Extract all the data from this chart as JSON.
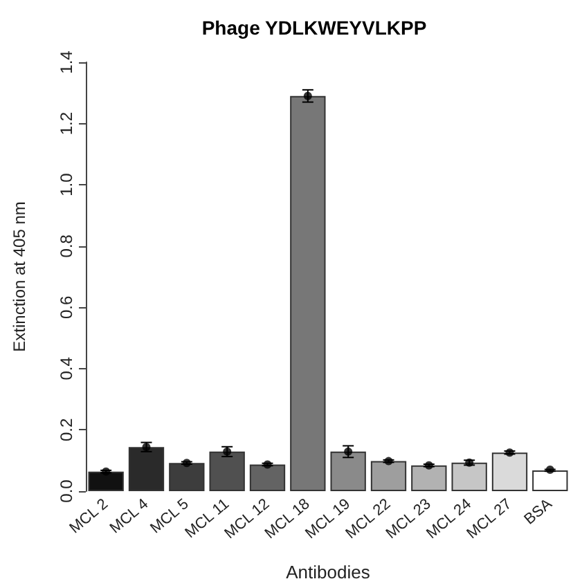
{
  "chart_data": {
    "type": "bar",
    "title": "Phage YDLKWEYVLKPP",
    "xlabel": "Antibodies",
    "ylabel": "Extinction at 405 nm",
    "categories": [
      "MCL 2",
      "MCL 4",
      "MCL 5",
      "MCL 11",
      "MCL 12",
      "MCL 18",
      "MCL 19",
      "MCL 22",
      "MCL 23",
      "MCL 24",
      "MCL 27",
      "BSA"
    ],
    "values": [
      0.064,
      0.144,
      0.092,
      0.129,
      0.087,
      1.29,
      0.129,
      0.098,
      0.084,
      0.093,
      0.126,
      0.068
    ],
    "errors": [
      0.004,
      0.015,
      0.004,
      0.016,
      0.004,
      0.02,
      0.019,
      0.004,
      0.004,
      0.008,
      0.005,
      0.003
    ],
    "series": [
      {
        "type": "scatter",
        "color": "#000000",
        "x": [
          "MCL 2",
          "MCL 4",
          "MCL 5",
          "MCL 11",
          "MCL 12",
          "MCL 18",
          "MCL 19",
          "MCL 22",
          "MCL 23",
          "MCL 24",
          "MCL 27",
          "BSA"
        ],
        "values": [
          0.064,
          0.144,
          0.092,
          0.129,
          0.087,
          1.29,
          0.129,
          0.098,
          0.084,
          0.093,
          0.126,
          0.07
        ]
      }
    ],
    "marker": "circle",
    "colors": [
      "#111111",
      "#2a2a2a",
      "#3d3d3d",
      "#505050",
      "#636363",
      "#777777",
      "#8a8a8a",
      "#9e9e9e",
      "#b2b2b2",
      "#c6c6c6",
      "#dadada",
      "#ffffff"
    ],
    "ylim": [
      0,
      1.4
    ],
    "yticks": [
      {
        "value": 0,
        "label": "0.0"
      },
      0.2,
      0.4,
      0.6,
      0.8,
      {
        "value": 1,
        "label": "1.0"
      },
      1.2,
      1.4
    ],
    "grid": false
  }
}
